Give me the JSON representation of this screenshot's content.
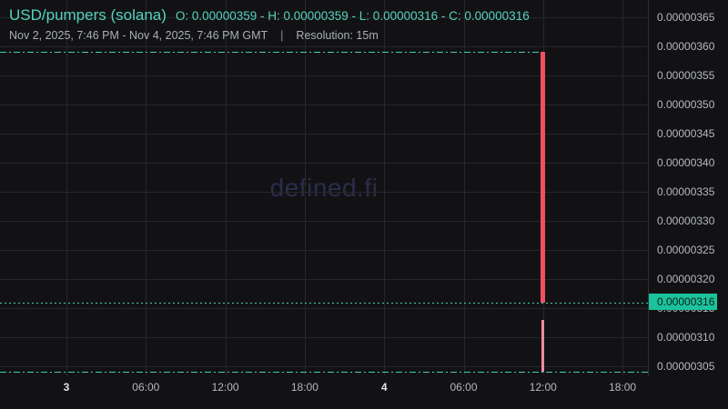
{
  "header": {
    "symbol": "USD/pumpers (solana)",
    "ohlc_text": "O: 0.00000359 - H: 0.00000359 - L: 0.00000316 - C: 0.00000316",
    "date_range": "Nov 2, 2025, 7:46 PM - Nov 4, 2025, 7:46 PM GMT",
    "separator": "|",
    "resolution": "Resolution: 15m"
  },
  "chart_data": {
    "type": "candlestick",
    "title": "USD/pumpers (solana)",
    "resolution": "15m",
    "time_range": "Nov 2, 2025, 7:46 PM - Nov 4, 2025, 7:46 PM GMT",
    "watermark_text": "defined.fi",
    "ohlc": {
      "open": "0.00000359",
      "high": "0.00000359",
      "low": "0.00000316",
      "close": "0.00000316"
    },
    "y_axis": {
      "side": "right",
      "last_price": "0.00000316",
      "ticks": [
        "0.00000365",
        "0.00000360",
        "0.00000355",
        "0.00000350",
        "0.00000345",
        "0.00000340",
        "0.00000335",
        "0.00000330",
        "0.00000325",
        "0.00000320",
        "0.00000315",
        "0.00000310",
        "0.00000305"
      ],
      "ylim": [
        "0.00000303",
        "0.00000368"
      ]
    },
    "x_axis": {
      "ticks": [
        {
          "label": "3",
          "bold": true
        },
        {
          "label": "06:00",
          "bold": false
        },
        {
          "label": "12:00",
          "bold": false
        },
        {
          "label": "18:00",
          "bold": false
        },
        {
          "label": "4",
          "bold": true
        },
        {
          "label": "06:00",
          "bold": false
        },
        {
          "label": "12:00",
          "bold": false
        },
        {
          "label": "18:00",
          "bold": false
        }
      ]
    },
    "candles": [
      {
        "x_index": 6,
        "time": "Nov 4 12:00",
        "open": "0.00000359",
        "high": "0.00000359",
        "low": "0.00000316",
        "close": "0.00000316",
        "direction": "down",
        "kind": "body"
      },
      {
        "x_index": 6,
        "time": "Nov 4 12:00",
        "open": "0.00000313",
        "high": "0.00000313",
        "low": "0.00000304",
        "close": "0.00000304",
        "direction": "down",
        "kind": "wick",
        "approx": true
      }
    ],
    "levels": [
      {
        "name": "open-level-line",
        "value": "0.00000359",
        "style": "dashdot",
        "extent": "to-candle"
      },
      {
        "name": "last-price-line",
        "value": "0.00000316",
        "style": "dot",
        "extent": "full"
      },
      {
        "name": "session-low-line",
        "value": "0.00000304",
        "style": "dashdot",
        "extent": "full"
      }
    ],
    "grid": true,
    "colors": {
      "background": "#121214",
      "grid": "#26272a",
      "down_candle": "#f05062",
      "wick": "#ef8aa0",
      "level_line": "#45cfb1",
      "accent_text": "#56d2bd",
      "last_price_tag_bg": "#1cc29c",
      "axis_text": "#b4b8c0",
      "watermark": "#2b2c4d"
    }
  }
}
